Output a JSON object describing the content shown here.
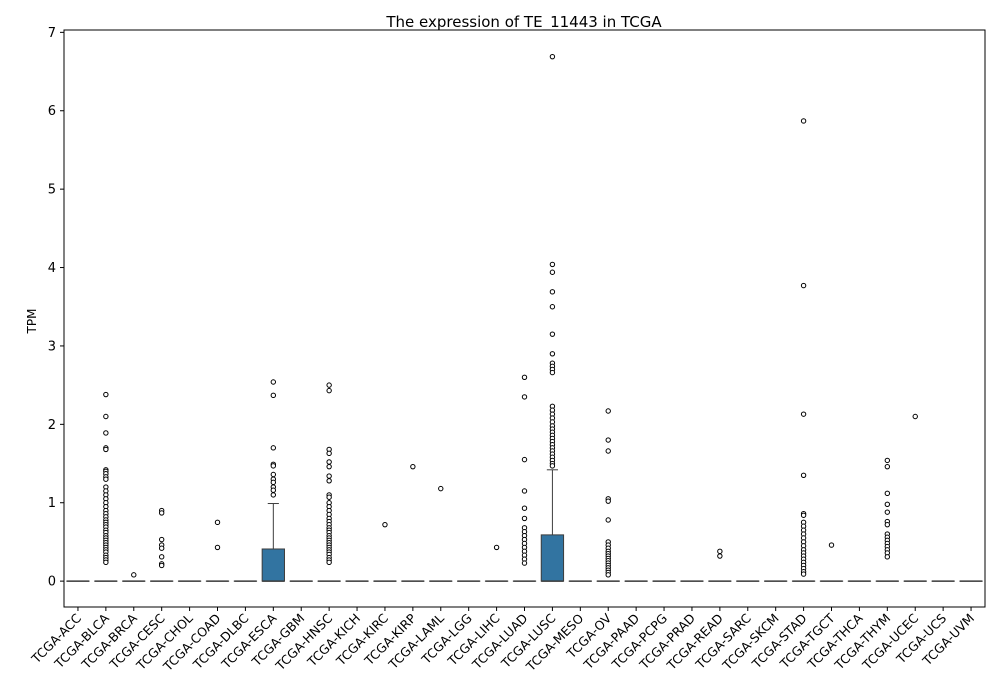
{
  "chart_data": {
    "type": "box",
    "title": "The expression of TE_11443 in TCGA",
    "xlabel": "",
    "ylabel": "TPM",
    "ylim": [
      -0.33,
      7.03
    ],
    "yticks": [
      0,
      1,
      2,
      3,
      4,
      5,
      6,
      7
    ],
    "grid": false,
    "box_color": "#3274a1",
    "categories": [
      "TCGA-ACC",
      "TCGA-BLCA",
      "TCGA-BRCA",
      "TCGA-CESC",
      "TCGA-CHOL",
      "TCGA-COAD",
      "TCGA-DLBC",
      "TCGA-ESCA",
      "TCGA-GBM",
      "TCGA-HNSC",
      "TCGA-KICH",
      "TCGA-KIRC",
      "TCGA-KIRP",
      "TCGA-LAML",
      "TCGA-LGG",
      "TCGA-LIHC",
      "TCGA-LUAD",
      "TCGA-LUSC",
      "TCGA-MESO",
      "TCGA-OV",
      "TCGA-PAAD",
      "TCGA-PCPG",
      "TCGA-PRAD",
      "TCGA-READ",
      "TCGA-SARC",
      "TCGA-SKCM",
      "TCGA-STAD",
      "TCGA-TGCT",
      "TCGA-THCA",
      "TCGA-THYM",
      "TCGA-UCEC",
      "TCGA-UCS",
      "TCGA-UVM"
    ],
    "boxes": [
      {
        "q1": 0,
        "median": 0,
        "q3": 0,
        "whisker_low": 0,
        "whisker_high": 0,
        "outliers": []
      },
      {
        "q1": 0,
        "median": 0,
        "q3": 0,
        "whisker_low": 0,
        "whisker_high": 0,
        "outliers": [
          2.38,
          2.1,
          1.89,
          1.7,
          1.68,
          1.42,
          1.4,
          1.37,
          1.33,
          1.3,
          1.2,
          1.15,
          1.1,
          1.05,
          1.0,
          0.95,
          0.9,
          0.86,
          0.82,
          0.78,
          0.75,
          0.72,
          0.69,
          0.65,
          0.62,
          0.58,
          0.55,
          0.52,
          0.49,
          0.46,
          0.43,
          0.4,
          0.37,
          0.33,
          0.3,
          0.27,
          0.24
        ]
      },
      {
        "q1": 0,
        "median": 0,
        "q3": 0,
        "whisker_low": 0,
        "whisker_high": 0,
        "outliers": [
          0.08
        ]
      },
      {
        "q1": 0,
        "median": 0,
        "q3": 0,
        "whisker_low": 0,
        "whisker_high": 0,
        "outliers": [
          0.9,
          0.87,
          0.53,
          0.46,
          0.42,
          0.31,
          0.22,
          0.2
        ]
      },
      {
        "q1": 0,
        "median": 0,
        "q3": 0,
        "whisker_low": 0,
        "whisker_high": 0,
        "outliers": []
      },
      {
        "q1": 0,
        "median": 0,
        "q3": 0,
        "whisker_low": 0,
        "whisker_high": 0,
        "outliers": [
          0.75,
          0.43
        ]
      },
      {
        "q1": 0,
        "median": 0,
        "q3": 0,
        "whisker_low": 0,
        "whisker_high": 0,
        "outliers": []
      },
      {
        "q1": 0,
        "median": 0,
        "q3": 0.41,
        "whisker_low": 0,
        "whisker_high": 0.99,
        "outliers": [
          2.54,
          2.37,
          1.7,
          1.49,
          1.47,
          1.36,
          1.3,
          1.26,
          1.2,
          1.16,
          1.1
        ]
      },
      {
        "q1": 0,
        "median": 0,
        "q3": 0,
        "whisker_low": 0,
        "whisker_high": 0,
        "outliers": []
      },
      {
        "q1": 0,
        "median": 0,
        "q3": 0,
        "whisker_low": 0,
        "whisker_high": 0,
        "outliers": [
          2.5,
          2.43,
          1.68,
          1.63,
          1.52,
          1.46,
          1.34,
          1.28,
          1.1,
          1.07,
          1.0,
          0.95,
          0.9,
          0.85,
          0.8,
          0.76,
          0.72,
          0.68,
          0.65,
          0.62,
          0.58,
          0.55,
          0.52,
          0.49,
          0.46,
          0.43,
          0.4,
          0.37,
          0.34,
          0.3,
          0.27,
          0.24
        ]
      },
      {
        "q1": 0,
        "median": 0,
        "q3": 0,
        "whisker_low": 0,
        "whisker_high": 0,
        "outliers": []
      },
      {
        "q1": 0,
        "median": 0,
        "q3": 0,
        "whisker_low": 0,
        "whisker_high": 0,
        "outliers": [
          0.72
        ]
      },
      {
        "q1": 0,
        "median": 0,
        "q3": 0,
        "whisker_low": 0,
        "whisker_high": 0,
        "outliers": [
          1.46
        ]
      },
      {
        "q1": 0,
        "median": 0,
        "q3": 0,
        "whisker_low": 0,
        "whisker_high": 0,
        "outliers": [
          1.18
        ]
      },
      {
        "q1": 0,
        "median": 0,
        "q3": 0,
        "whisker_low": 0,
        "whisker_high": 0,
        "outliers": []
      },
      {
        "q1": 0,
        "median": 0,
        "q3": 0,
        "whisker_low": 0,
        "whisker_high": 0,
        "outliers": [
          0.43
        ]
      },
      {
        "q1": 0,
        "median": 0,
        "q3": 0,
        "whisker_low": 0,
        "whisker_high": 0,
        "outliers": [
          2.6,
          2.35,
          1.55,
          1.15,
          0.93,
          0.8,
          0.68,
          0.63,
          0.58,
          0.53,
          0.48,
          0.43,
          0.38,
          0.33,
          0.28,
          0.23
        ]
      },
      {
        "q1": 0,
        "median": 0,
        "q3": 0.59,
        "whisker_low": 0,
        "whisker_high": 1.42,
        "outliers": [
          6.69,
          4.04,
          3.94,
          3.69,
          3.5,
          3.15,
          2.9,
          2.78,
          2.74,
          2.7,
          2.66,
          2.23,
          2.18,
          2.13,
          2.08,
          2.03,
          1.98,
          1.94,
          1.9,
          1.86,
          1.82,
          1.78,
          1.74,
          1.7,
          1.66,
          1.62,
          1.58,
          1.54,
          1.5,
          1.47
        ]
      },
      {
        "q1": 0,
        "median": 0,
        "q3": 0,
        "whisker_low": 0,
        "whisker_high": 0,
        "outliers": []
      },
      {
        "q1": 0,
        "median": 0,
        "q3": 0,
        "whisker_low": 0,
        "whisker_high": 0,
        "outliers": [
          2.17,
          1.8,
          1.66,
          1.05,
          1.02,
          0.78,
          0.5,
          0.46,
          0.42,
          0.38,
          0.35,
          0.32,
          0.29,
          0.26,
          0.23,
          0.2,
          0.17,
          0.14,
          0.11,
          0.08
        ]
      },
      {
        "q1": 0,
        "median": 0,
        "q3": 0,
        "whisker_low": 0,
        "whisker_high": 0,
        "outliers": []
      },
      {
        "q1": 0,
        "median": 0,
        "q3": 0,
        "whisker_low": 0,
        "whisker_high": 0,
        "outliers": []
      },
      {
        "q1": 0,
        "median": 0,
        "q3": 0,
        "whisker_low": 0,
        "whisker_high": 0,
        "outliers": []
      },
      {
        "q1": 0,
        "median": 0,
        "q3": 0,
        "whisker_low": 0,
        "whisker_high": 0,
        "outliers": [
          0.38,
          0.32
        ]
      },
      {
        "q1": 0,
        "median": 0,
        "q3": 0,
        "whisker_low": 0,
        "whisker_high": 0,
        "outliers": []
      },
      {
        "q1": 0,
        "median": 0,
        "q3": 0,
        "whisker_low": 0,
        "whisker_high": 0,
        "outliers": []
      },
      {
        "q1": 0,
        "median": 0,
        "q3": 0,
        "whisker_low": 0,
        "whisker_high": 0,
        "outliers": [
          5.87,
          3.77,
          2.13,
          1.35,
          0.86,
          0.84,
          0.75,
          0.7,
          0.65,
          0.6,
          0.55,
          0.5,
          0.45,
          0.4,
          0.36,
          0.32,
          0.28,
          0.24,
          0.2,
          0.16,
          0.12,
          0.09
        ]
      },
      {
        "q1": 0,
        "median": 0,
        "q3": 0,
        "whisker_low": 0,
        "whisker_high": 0,
        "outliers": [
          0.46
        ]
      },
      {
        "q1": 0,
        "median": 0,
        "q3": 0,
        "whisker_low": 0,
        "whisker_high": 0,
        "outliers": []
      },
      {
        "q1": 0,
        "median": 0,
        "q3": 0,
        "whisker_low": 0,
        "whisker_high": 0,
        "outliers": [
          1.54,
          1.46,
          1.12,
          0.98,
          0.88,
          0.76,
          0.72,
          0.6,
          0.56,
          0.52,
          0.48,
          0.44,
          0.4,
          0.36,
          0.31
        ]
      },
      {
        "q1": 0,
        "median": 0,
        "q3": 0,
        "whisker_low": 0,
        "whisker_high": 0,
        "outliers": [
          2.1
        ]
      },
      {
        "q1": 0,
        "median": 0,
        "q3": 0,
        "whisker_low": 0,
        "whisker_high": 0,
        "outliers": []
      },
      {
        "q1": 0,
        "median": 0,
        "q3": 0,
        "whisker_low": 0,
        "whisker_high": 0,
        "outliers": []
      }
    ]
  }
}
